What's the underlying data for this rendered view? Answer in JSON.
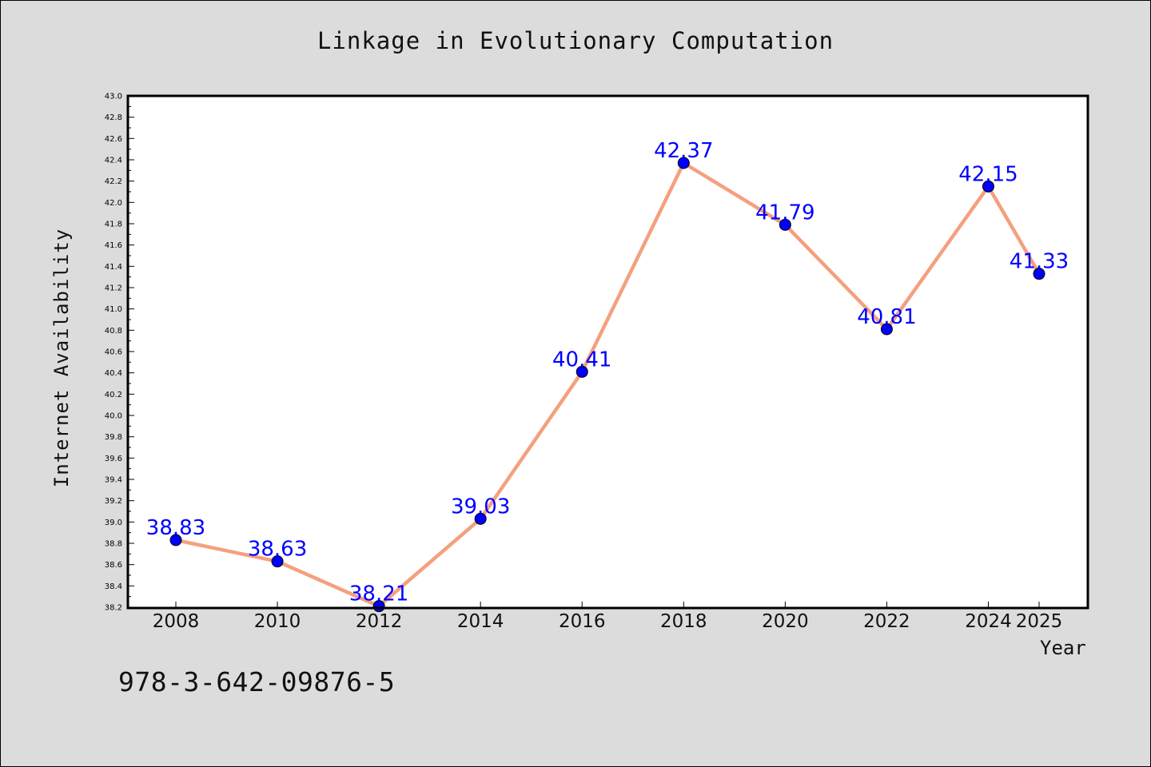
{
  "chart_data": {
    "type": "line",
    "title": "Linkage in Evolutionary Computation",
    "xlabel": "Year",
    "ylabel": "Internet Availability",
    "x": [
      2008,
      2010,
      2012,
      2014,
      2016,
      2018,
      2020,
      2022,
      2024,
      2025
    ],
    "x_tick_labels": [
      "2008",
      "2010",
      "2012",
      "2014",
      "2016",
      "2018",
      "2020",
      "2022",
      "2024",
      "2025"
    ],
    "series": [
      {
        "values": [
          38.83,
          38.63,
          38.21,
          39.03,
          40.41,
          42.37,
          41.79,
          40.81,
          42.15,
          41.33
        ],
        "labels": [
          "38.83",
          "38.63",
          "38.21",
          "39.03",
          "40.41",
          "42.37",
          "41.79",
          "40.81",
          "42.15",
          "41.33"
        ]
      }
    ],
    "ylim": [
      38.2,
      43.0
    ],
    "y_ticks": [
      "38.2",
      "38.4",
      "38.6",
      "38.8",
      "39.0",
      "39.2",
      "39.4",
      "39.6",
      "39.8",
      "40.0",
      "40.2",
      "40.4",
      "40.6",
      "40.8",
      "41.0",
      "41.2",
      "41.4",
      "41.6",
      "41.8",
      "42.0",
      "42.2",
      "42.4",
      "42.6",
      "42.8",
      "43.0"
    ],
    "grid": false,
    "legend": "none",
    "colors": {
      "line": "#f4a07e",
      "marker": "#0000ff",
      "data_label": "#0000ff",
      "plot_background": "#ffffff",
      "figure_background": "#dcdcdc"
    }
  },
  "footnote": "978-3-642-09876-5"
}
